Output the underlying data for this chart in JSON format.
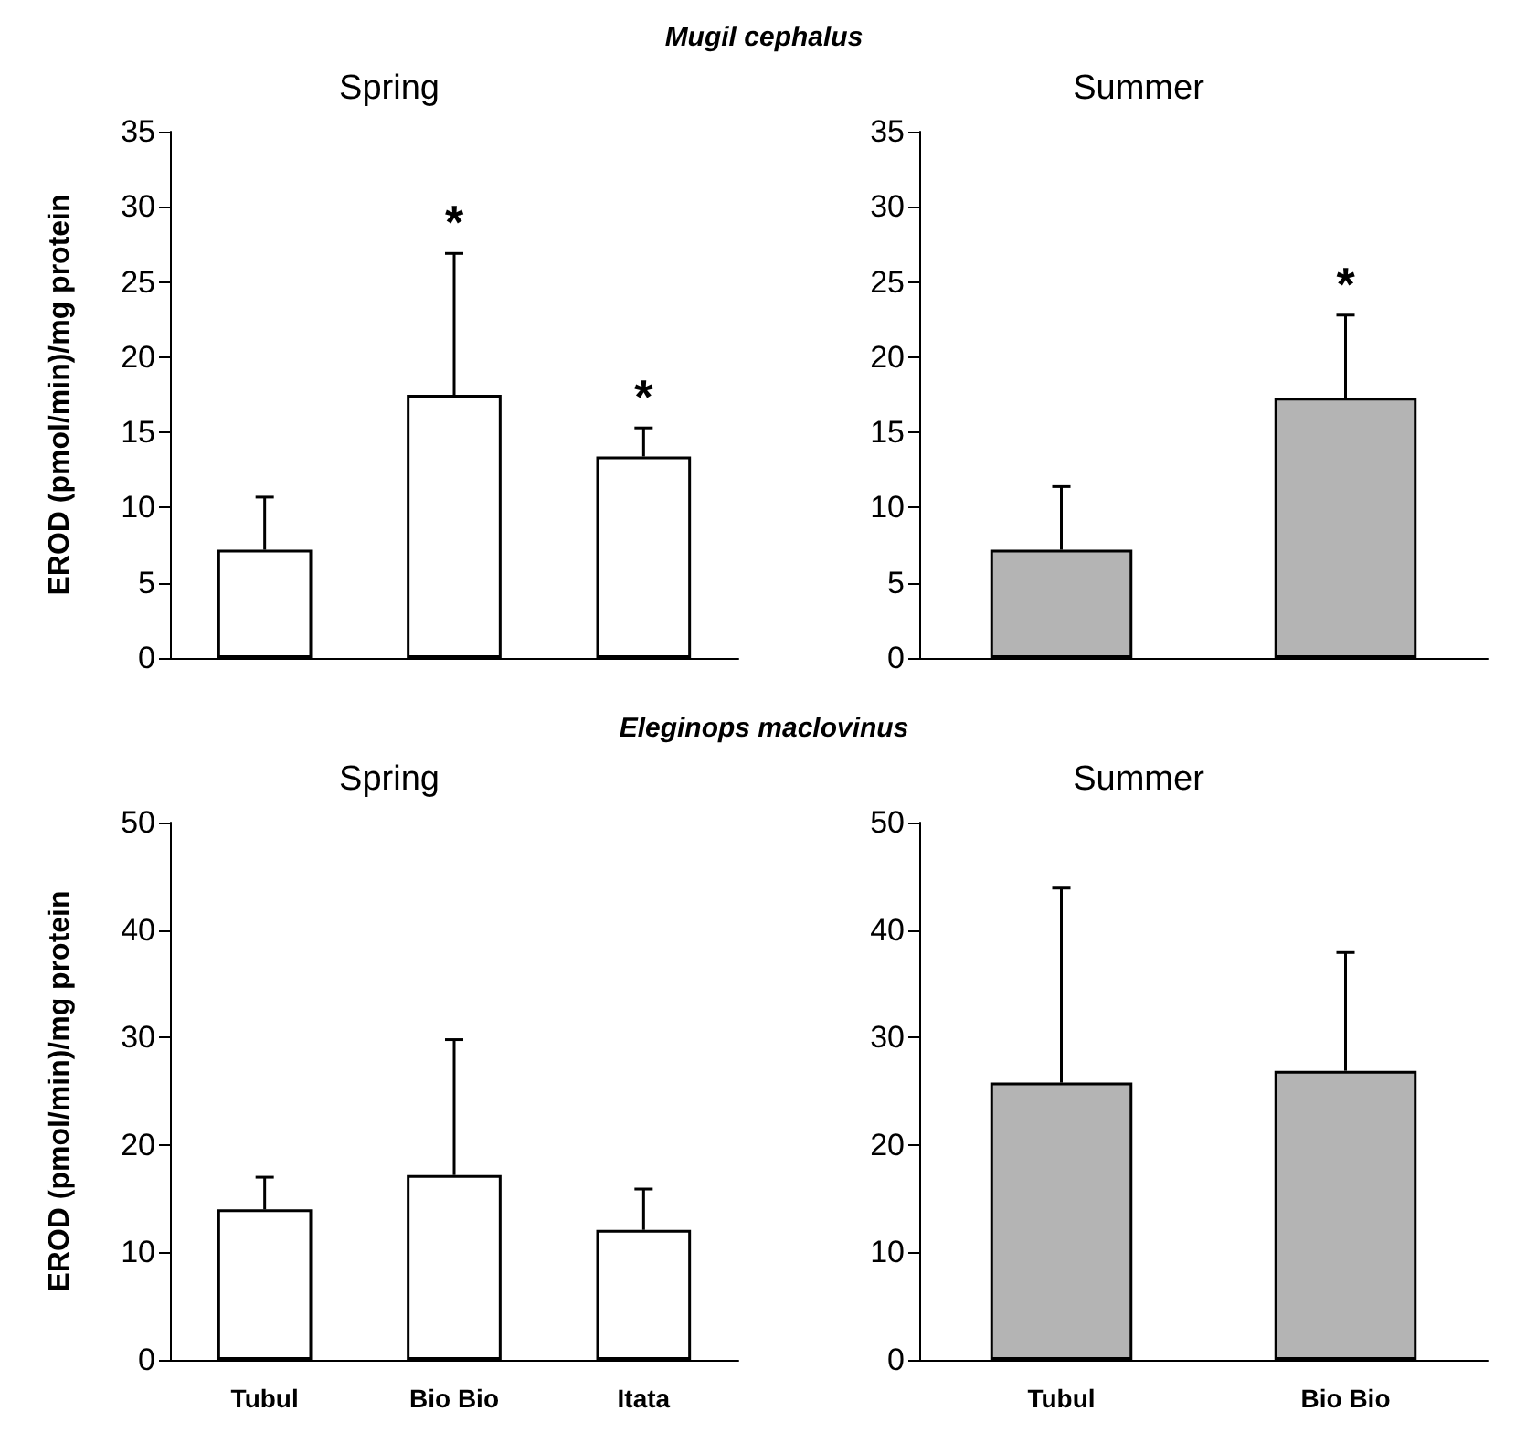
{
  "chart_data": [
    {
      "type": "bar",
      "title": "Spring",
      "annotations": [
        "Mugil cephalus"
      ],
      "ylabel": "EROD (pmol/min)/mg protein",
      "categories": [
        null,
        null,
        null
      ],
      "values": [
        7.2,
        17.5,
        13.4
      ],
      "color": "#ffffff",
      "errors": [
        [
          7.2,
          10.7
        ],
        [
          17.5,
          26.9
        ],
        [
          13.4,
          15.3
        ]
      ],
      "value_labels": [
        null,
        "*",
        "*"
      ],
      "ylim": [
        0,
        35
      ],
      "yticks": [
        0,
        5,
        10,
        15,
        20,
        25,
        30,
        35
      ],
      "tick_labels": "y"
    },
    {
      "type": "bar",
      "title": "Summer",
      "categories": [
        null,
        null
      ],
      "values": [
        7.2,
        17.3
      ],
      "color": "#b4b4b4",
      "errors": [
        [
          7.2,
          11.4
        ],
        [
          17.3,
          22.8
        ]
      ],
      "value_labels": [
        null,
        "*"
      ],
      "ylim": [
        0,
        35
      ],
      "yticks": [
        0,
        5,
        10,
        15,
        20,
        25,
        30,
        35
      ],
      "tick_labels": "y"
    },
    {
      "type": "bar",
      "title": "Spring",
      "annotations": [
        "Eleginops maclovinus"
      ],
      "ylabel": "EROD (pmol/min)/mg protein",
      "categories": [
        "Tubul",
        "Bio Bio",
        "Itata"
      ],
      "values": [
        14.0,
        17.2,
        12.1
      ],
      "color": "#ffffff",
      "errors": [
        [
          14.0,
          17.0
        ],
        [
          17.2,
          29.8
        ],
        [
          12.1,
          15.9
        ]
      ],
      "ylim": [
        0,
        50
      ],
      "yticks": [
        0,
        10,
        20,
        30,
        40,
        50
      ]
    },
    {
      "type": "bar",
      "title": "Summer",
      "categories": [
        "Tubul",
        "Bio Bio"
      ],
      "values": [
        25.8,
        26.9
      ],
      "color": "#b4b4b4",
      "errors": [
        [
          25.8,
          43.9
        ],
        [
          26.9,
          37.9
        ]
      ],
      "ylim": [
        0,
        50
      ],
      "yticks": [
        0,
        10,
        20,
        30,
        40,
        50
      ]
    }
  ]
}
